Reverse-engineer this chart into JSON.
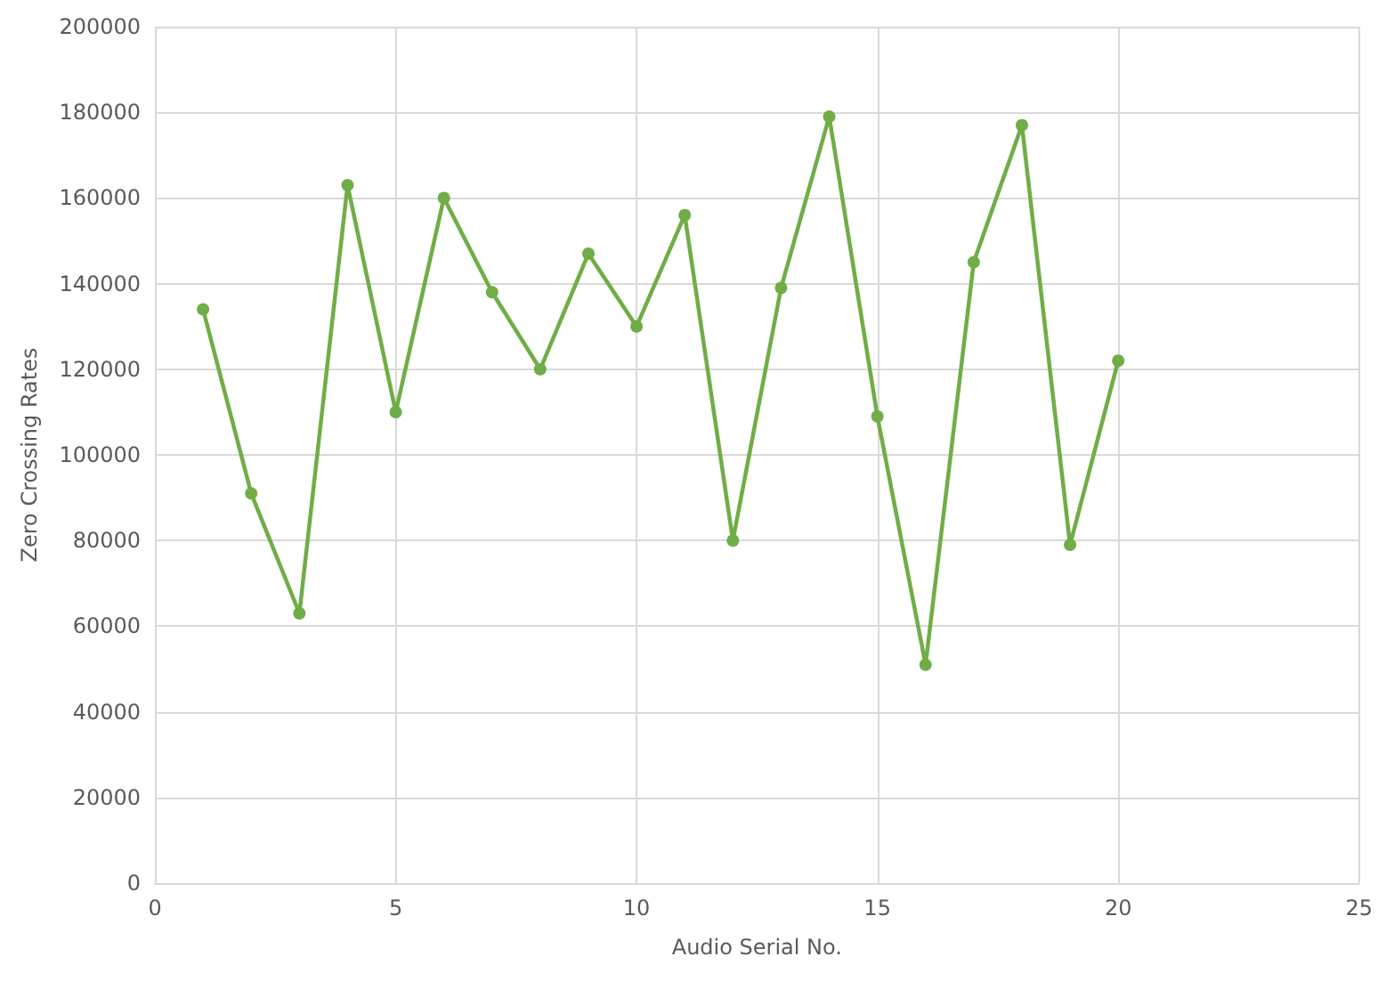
{
  "chart_data": {
    "type": "line",
    "xlabel": "Audio Serial No.",
    "ylabel": "Zero Crossing Rates",
    "x": [
      1,
      2,
      3,
      4,
      5,
      6,
      7,
      8,
      9,
      10,
      11,
      12,
      13,
      14,
      15,
      16,
      17,
      18,
      19,
      20
    ],
    "series": [
      {
        "color": "#70ad47",
        "values": [
          134000,
          91000,
          63000,
          163000,
          110000,
          160000,
          138000,
          120000,
          147000,
          130000,
          156000,
          80000,
          139000,
          179000,
          109000,
          51000,
          145000,
          177000,
          79000,
          122000
        ]
      }
    ],
    "xlim": [
      0,
      25
    ],
    "xticks": [
      0,
      5,
      10,
      15,
      20,
      25
    ],
    "ylim": [
      0,
      200000
    ],
    "yticks": [
      0,
      20000,
      40000,
      60000,
      80000,
      100000,
      120000,
      140000,
      160000,
      180000,
      200000
    ],
    "grid": true,
    "marker": "circle",
    "line_style": "solid"
  }
}
